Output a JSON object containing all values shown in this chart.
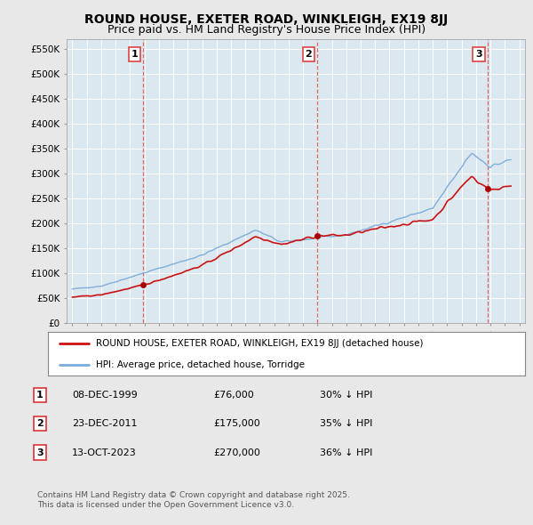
{
  "title": "ROUND HOUSE, EXETER ROAD, WINKLEIGH, EX19 8JJ",
  "subtitle": "Price paid vs. HM Land Registry's House Price Index (HPI)",
  "title_fontsize": 10,
  "subtitle_fontsize": 9,
  "bg_color": "#e8e8e8",
  "plot_bg_color": "#dce8f0",
  "grid_color": "#ffffff",
  "hpi_color": "#7aabdb",
  "price_color": "#cc1111",
  "marker_color": "#aa0000",
  "vline_color": "#dd4444",
  "ylim": [
    0,
    570000
  ],
  "yticks": [
    0,
    50000,
    100000,
    150000,
    200000,
    250000,
    300000,
    350000,
    400000,
    450000,
    500000,
    550000
  ],
  "transactions": [
    {
      "date": 1999.92,
      "price": 76000,
      "label": "1"
    },
    {
      "date": 2011.98,
      "price": 175000,
      "label": "2"
    },
    {
      "date": 2023.79,
      "price": 270000,
      "label": "3"
    }
  ],
  "legend_house": "ROUND HOUSE, EXETER ROAD, WINKLEIGH, EX19 8JJ (detached house)",
  "legend_hpi": "HPI: Average price, detached house, Torridge",
  "table_rows": [
    {
      "num": "1",
      "date": "08-DEC-1999",
      "price": "£76,000",
      "pct": "30% ↓ HPI"
    },
    {
      "num": "2",
      "date": "23-DEC-2011",
      "price": "£175,000",
      "pct": "35% ↓ HPI"
    },
    {
      "num": "3",
      "date": "13-OCT-2023",
      "price": "£270,000",
      "pct": "36% ↓ HPI"
    }
  ],
  "footer": "Contains HM Land Registry data © Crown copyright and database right 2025.\nThis data is licensed under the Open Government Licence v3.0."
}
